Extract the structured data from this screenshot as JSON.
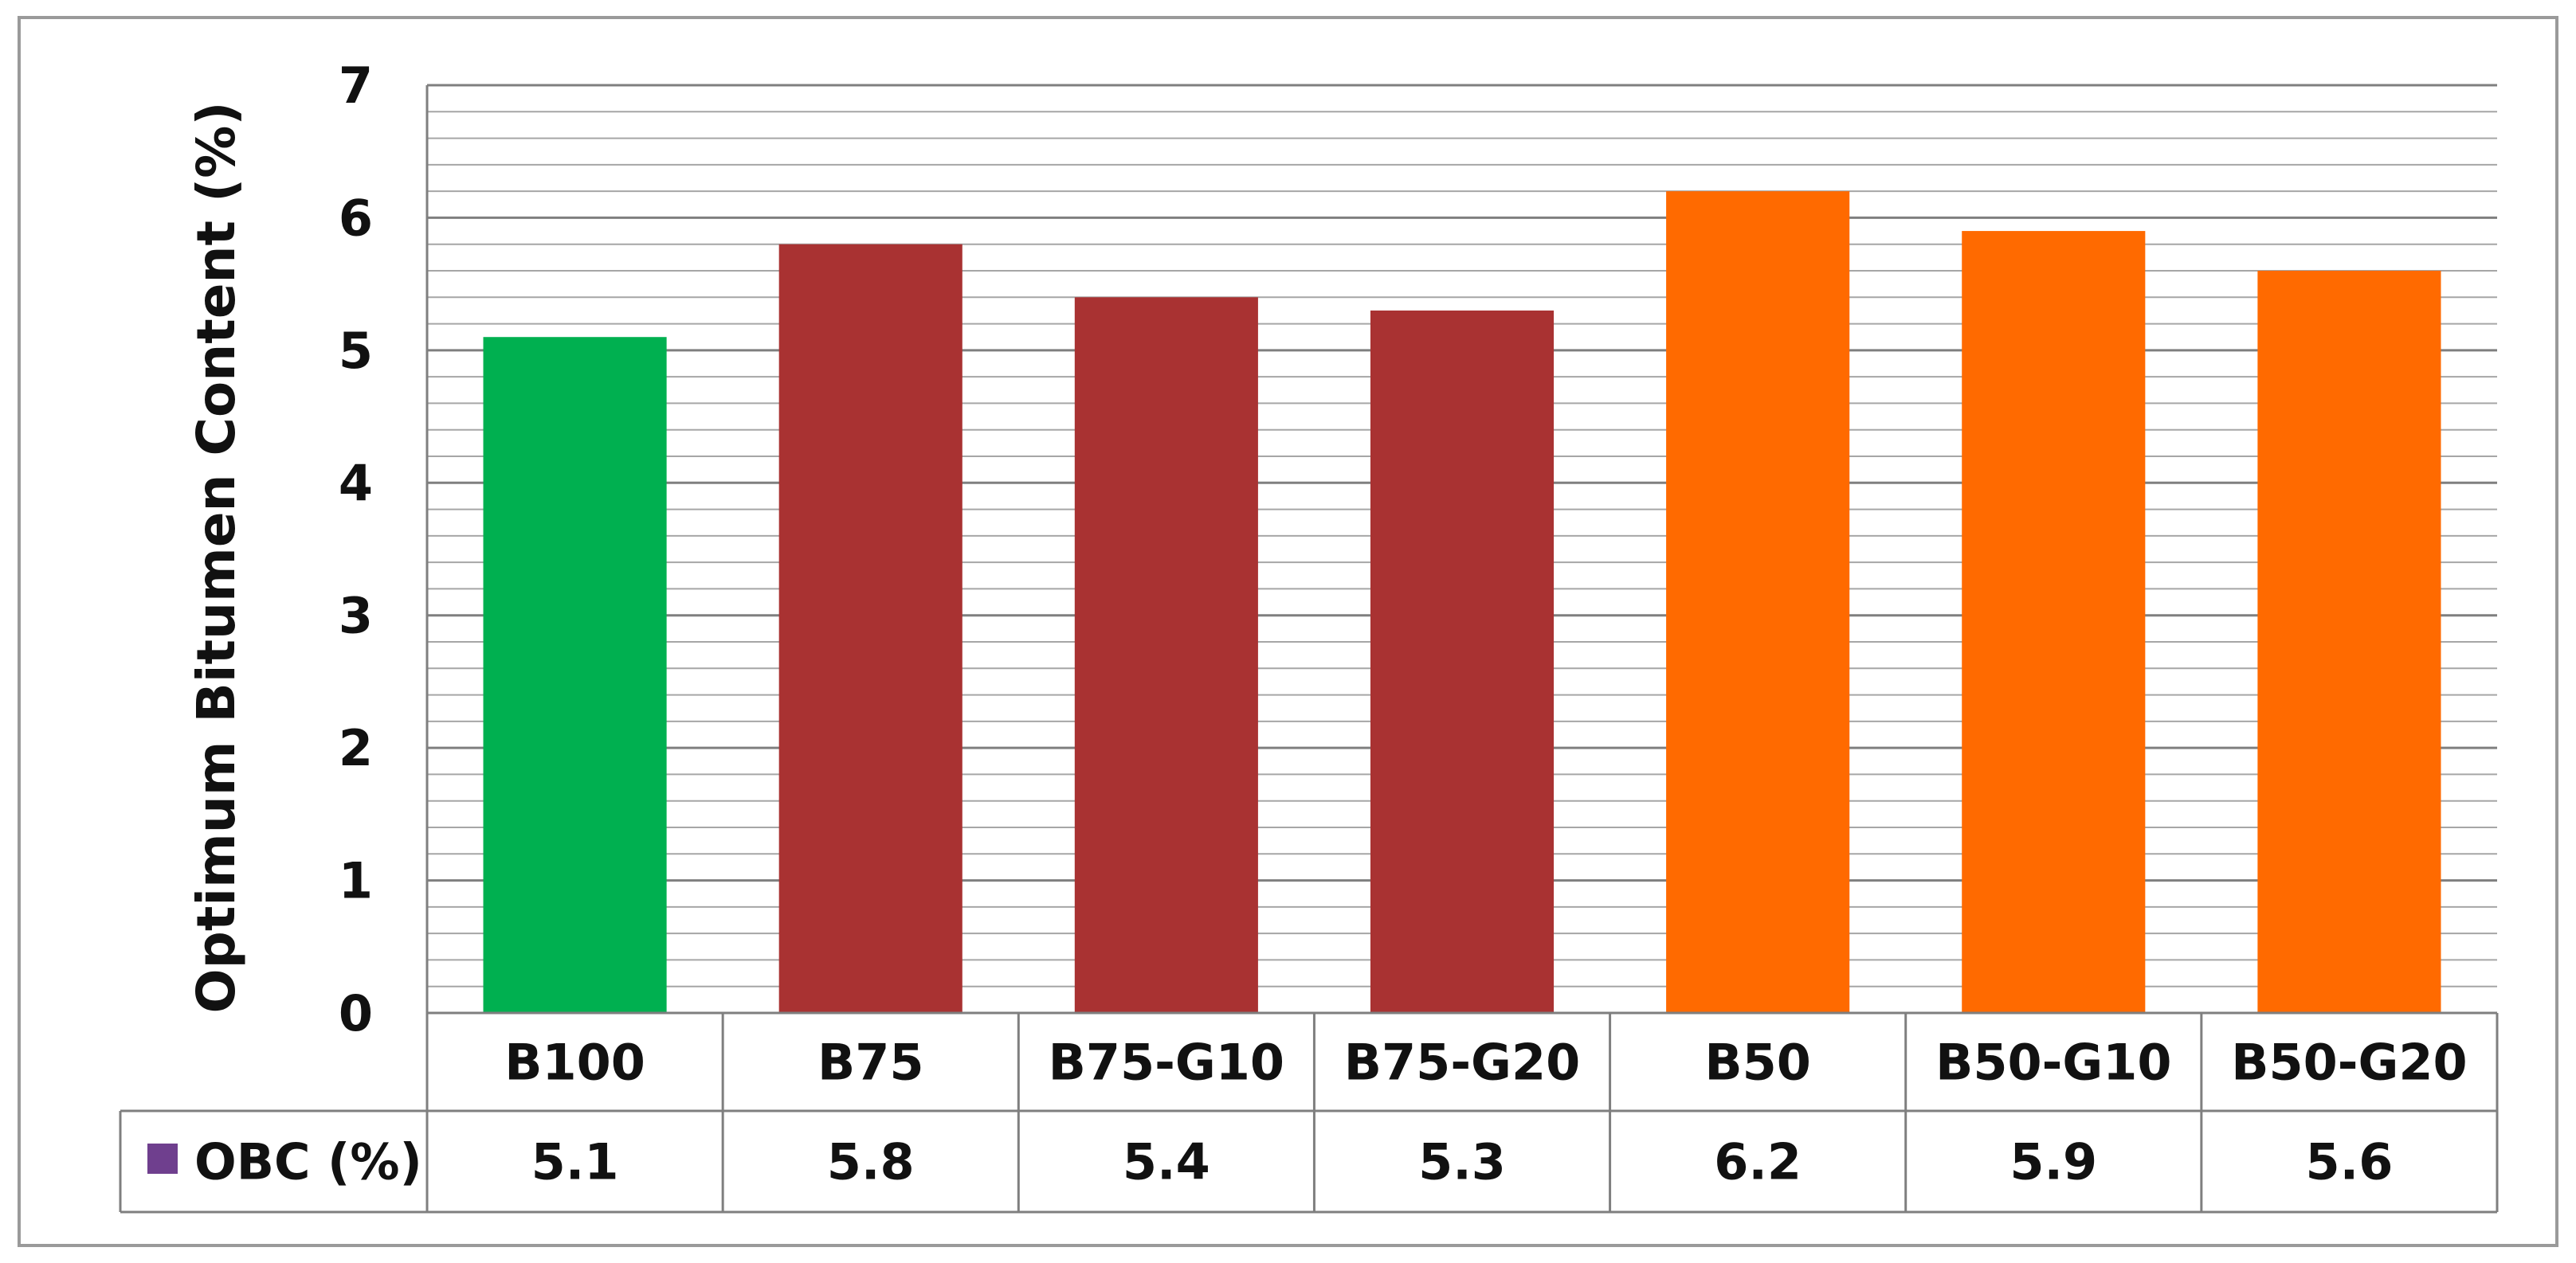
{
  "chart_data": {
    "type": "bar",
    "title": "",
    "xlabel": "",
    "ylabel": "Optimum Bitumen Content (%)",
    "ylim": [
      0,
      7
    ],
    "y_ticks": [
      "0",
      "1",
      "2",
      "3",
      "4",
      "5",
      "6",
      "7"
    ],
    "minor_gridlines_per_unit": 5,
    "grid": true,
    "categories": [
      "B100",
      "B75",
      "B75-G10",
      "B75-G20",
      "B50",
      "B50-G10",
      "B50-G20"
    ],
    "series": [
      {
        "name": "OBC (%)",
        "values": [
          5.1,
          5.8,
          5.4,
          5.3,
          6.2,
          5.9,
          5.6
        ],
        "legend_color": "#6f3f8e"
      }
    ],
    "value_labels": [
      "5.1",
      "5.8",
      "5.4",
      "5.3",
      "6.2",
      "5.9",
      "5.6"
    ],
    "bar_colors": [
      "#00b050",
      "#a93232",
      "#a93232",
      "#a93232",
      "#ff6a00",
      "#ff6a00",
      "#ff6a00"
    ],
    "legend_placement": "data table below chart"
  }
}
